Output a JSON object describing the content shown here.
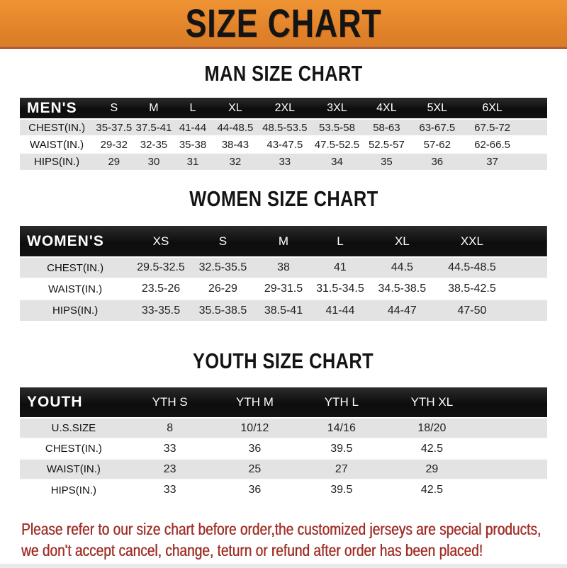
{
  "banner": {
    "title": "SIZE CHART"
  },
  "colors": {
    "banner_orange": "#e0812a",
    "banner_strip": "#b25b41",
    "header_black": "#141414",
    "row_gray": "#e3e3e3",
    "row_white": "#ffffff",
    "note_red": "#a33028"
  },
  "sections": [
    {
      "heading": "MAN SIZE CHART",
      "table_label": "MEN'S",
      "columns": [
        "S",
        "M",
        "L",
        "XL",
        "2XL",
        "3XL",
        "4XL",
        "5XL",
        "6XL"
      ],
      "rows": [
        {
          "label": "CHEST(IN.)",
          "values": [
            "35-37.5",
            "37.5-41",
            "41-44",
            "44-48.5",
            "48.5-53.5",
            "53.5-58",
            "58-63",
            "63-67.5",
            "67.5-72"
          ]
        },
        {
          "label": "WAIST(IN.)",
          "values": [
            "29-32",
            "32-35",
            "35-38",
            "38-43",
            "43-47.5",
            "47.5-52.5",
            "52.5-57",
            "57-62",
            "62-66.5"
          ]
        },
        {
          "label": "HIPS(IN.)",
          "values": [
            "29",
            "30",
            "31",
            "32",
            "33",
            "34",
            "35",
            "36",
            "37"
          ]
        }
      ]
    },
    {
      "heading": "WOMEN SIZE CHART",
      "table_label": "WOMEN'S",
      "columns": [
        "XS",
        "S",
        "M",
        "L",
        "XL",
        "XXL"
      ],
      "rows": [
        {
          "label": "CHEST(IN.)",
          "values": [
            "29.5-32.5",
            "32.5-35.5",
            "38",
            "41",
            "44.5",
            "44.5-48.5"
          ]
        },
        {
          "label": "WAIST(IN.)",
          "values": [
            "23.5-26",
            "26-29",
            "29-31.5",
            "31.5-34.5",
            "34.5-38.5",
            "38.5-42.5"
          ]
        },
        {
          "label": "HIPS(IN.)",
          "values": [
            "33-35.5",
            "35.5-38.5",
            "38.5-41",
            "41-44",
            "44-47",
            "47-50"
          ]
        }
      ]
    },
    {
      "heading": "YOUTH SIZE CHART",
      "table_label": "YOUTH",
      "columns": [
        "YTH S",
        "YTH M",
        "YTH L",
        "YTH XL"
      ],
      "rows": [
        {
          "label": "U.S.SIZE",
          "values": [
            "8",
            "10/12",
            "14/16",
            "18/20"
          ]
        },
        {
          "label": "CHEST(IN.)",
          "values": [
            "33",
            "36",
            "39.5",
            "42.5"
          ]
        },
        {
          "label": "WAIST(IN.)",
          "values": [
            "23",
            "25",
            "27",
            "29"
          ]
        },
        {
          "label": "HIPS(IN.)",
          "values": [
            "33",
            "36",
            "39.5",
            "42.5"
          ]
        }
      ]
    }
  ],
  "note": {
    "lines": [
      "Please refer to our size chart before order,the customized jerseys are special products,",
      "we don't accept cancel, change, teturn or refund after order has been placed!"
    ]
  }
}
